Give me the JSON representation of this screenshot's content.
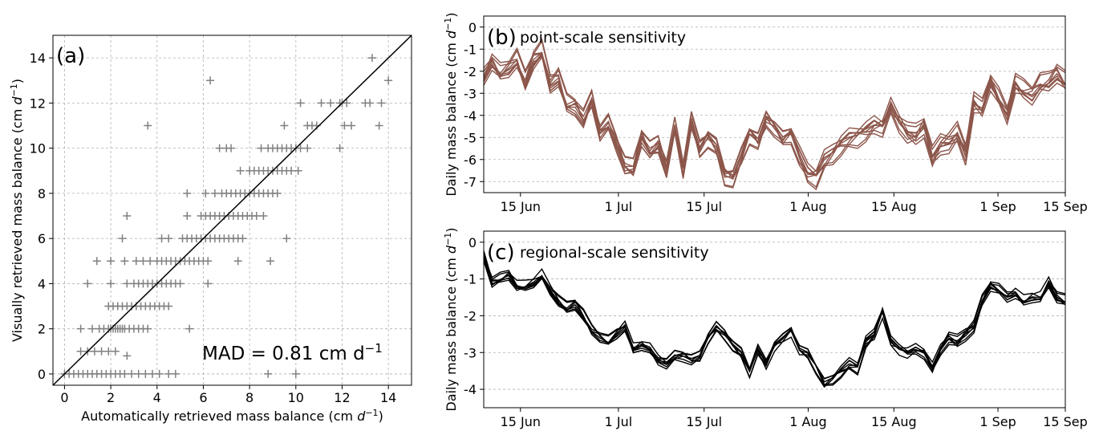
{
  "chart_data": [
    {
      "id": "a",
      "type": "scatter",
      "panel_letter": "(a)",
      "xlabel_main": "Automatically retrieved mass balance (cm ",
      "ylabel_main": "Visually retrieved mass balance (cm ",
      "unit_var": "d",
      "unit_exp": "−1",
      "close_paren": ")",
      "xlim": [
        -0.5,
        15
      ],
      "ylim": [
        -0.5,
        15
      ],
      "xticks": [
        0,
        2,
        4,
        6,
        8,
        10,
        12,
        14
      ],
      "yticks": [
        0,
        2,
        4,
        6,
        8,
        10,
        12,
        14
      ],
      "marker_color": "#808080",
      "annotation_main": "MAD = 0.81 cm d",
      "annotation_exp": "−1",
      "one_to_one_line": true,
      "points": [
        [
          0,
          0
        ],
        [
          0.2,
          0
        ],
        [
          0.4,
          0
        ],
        [
          0.6,
          0
        ],
        [
          0.8,
          0
        ],
        [
          1.0,
          0
        ],
        [
          1.2,
          0
        ],
        [
          1.4,
          0
        ],
        [
          1.6,
          0
        ],
        [
          1.8,
          0
        ],
        [
          2.0,
          0
        ],
        [
          2.2,
          0
        ],
        [
          2.4,
          0
        ],
        [
          2.6,
          0
        ],
        [
          2.9,
          0
        ],
        [
          3.2,
          0
        ],
        [
          3.5,
          0
        ],
        [
          3.8,
          0
        ],
        [
          4.1,
          0
        ],
        [
          4.5,
          0
        ],
        [
          4.8,
          0
        ],
        [
          8.8,
          0
        ],
        [
          10.0,
          0
        ],
        [
          0.7,
          1
        ],
        [
          1.0,
          1
        ],
        [
          1.3,
          1
        ],
        [
          1.6,
          1
        ],
        [
          1.9,
          1
        ],
        [
          2.2,
          1
        ],
        [
          2.7,
          0.8
        ],
        [
          0.7,
          2
        ],
        [
          1.2,
          2
        ],
        [
          1.5,
          2
        ],
        [
          1.7,
          2
        ],
        [
          1.9,
          2
        ],
        [
          2.0,
          2
        ],
        [
          2.1,
          2
        ],
        [
          2.2,
          2
        ],
        [
          2.3,
          2
        ],
        [
          2.4,
          2
        ],
        [
          2.5,
          2
        ],
        [
          2.6,
          2
        ],
        [
          2.8,
          2
        ],
        [
          3.0,
          2
        ],
        [
          3.2,
          2
        ],
        [
          3.4,
          2
        ],
        [
          3.6,
          2
        ],
        [
          5.4,
          2
        ],
        [
          1.9,
          3
        ],
        [
          2.1,
          3
        ],
        [
          2.3,
          3
        ],
        [
          2.5,
          3
        ],
        [
          2.7,
          3
        ],
        [
          2.9,
          3
        ],
        [
          3.1,
          3
        ],
        [
          3.3,
          3
        ],
        [
          3.5,
          3
        ],
        [
          3.7,
          3
        ],
        [
          3.9,
          3
        ],
        [
          4.1,
          3
        ],
        [
          4.3,
          3
        ],
        [
          4.5,
          3
        ],
        [
          1.0,
          4
        ],
        [
          2.0,
          4
        ],
        [
          2.7,
          4
        ],
        [
          3.0,
          4
        ],
        [
          3.2,
          4
        ],
        [
          3.4,
          4
        ],
        [
          3.6,
          4
        ],
        [
          3.8,
          4
        ],
        [
          4.0,
          4
        ],
        [
          4.2,
          4
        ],
        [
          4.4,
          4
        ],
        [
          4.6,
          4
        ],
        [
          4.8,
          4
        ],
        [
          5.0,
          4
        ],
        [
          6.2,
          4
        ],
        [
          1.4,
          5
        ],
        [
          2.0,
          5
        ],
        [
          2.6,
          5
        ],
        [
          3.1,
          5
        ],
        [
          3.4,
          5
        ],
        [
          3.7,
          5
        ],
        [
          4.0,
          5
        ],
        [
          4.2,
          5
        ],
        [
          4.4,
          5
        ],
        [
          4.6,
          5
        ],
        [
          4.8,
          5
        ],
        [
          5.0,
          5
        ],
        [
          5.2,
          5
        ],
        [
          5.4,
          5
        ],
        [
          5.6,
          5
        ],
        [
          5.8,
          5
        ],
        [
          6.0,
          5
        ],
        [
          6.2,
          5
        ],
        [
          7.5,
          5
        ],
        [
          8.9,
          5
        ],
        [
          2.5,
          6
        ],
        [
          4.2,
          6
        ],
        [
          4.5,
          6
        ],
        [
          5.1,
          6
        ],
        [
          5.3,
          6
        ],
        [
          5.5,
          6
        ],
        [
          5.7,
          6
        ],
        [
          5.9,
          6
        ],
        [
          6.1,
          6
        ],
        [
          6.3,
          6
        ],
        [
          6.5,
          6
        ],
        [
          6.7,
          6
        ],
        [
          6.9,
          6
        ],
        [
          7.1,
          6
        ],
        [
          7.3,
          6
        ],
        [
          7.5,
          6
        ],
        [
          7.7,
          6
        ],
        [
          9.6,
          6
        ],
        [
          2.7,
          7
        ],
        [
          5.3,
          7
        ],
        [
          5.9,
          7
        ],
        [
          6.1,
          7
        ],
        [
          6.3,
          7
        ],
        [
          6.5,
          7
        ],
        [
          6.7,
          7
        ],
        [
          6.9,
          7
        ],
        [
          7.1,
          7
        ],
        [
          7.3,
          7
        ],
        [
          7.5,
          7
        ],
        [
          7.7,
          7
        ],
        [
          7.9,
          7
        ],
        [
          8.1,
          7
        ],
        [
          8.3,
          7
        ],
        [
          8.6,
          7
        ],
        [
          5.3,
          8
        ],
        [
          6.1,
          8
        ],
        [
          6.5,
          8
        ],
        [
          6.8,
          8
        ],
        [
          7.0,
          8
        ],
        [
          7.2,
          8
        ],
        [
          7.4,
          8
        ],
        [
          7.6,
          8
        ],
        [
          7.8,
          8
        ],
        [
          8.0,
          8
        ],
        [
          8.2,
          8
        ],
        [
          8.4,
          8
        ],
        [
          8.6,
          8
        ],
        [
          8.8,
          8
        ],
        [
          9.0,
          8
        ],
        [
          9.2,
          8
        ],
        [
          7.6,
          9
        ],
        [
          8.0,
          9
        ],
        [
          8.2,
          9
        ],
        [
          8.4,
          9
        ],
        [
          8.6,
          9
        ],
        [
          8.8,
          9
        ],
        [
          9.0,
          9
        ],
        [
          9.2,
          9
        ],
        [
          9.4,
          9
        ],
        [
          9.6,
          9
        ],
        [
          9.8,
          9
        ],
        [
          10.1,
          9
        ],
        [
          6.7,
          10
        ],
        [
          7.0,
          10
        ],
        [
          7.2,
          10
        ],
        [
          8.5,
          10
        ],
        [
          8.8,
          10
        ],
        [
          9.0,
          10
        ],
        [
          9.2,
          10
        ],
        [
          9.4,
          10
        ],
        [
          9.6,
          10
        ],
        [
          9.8,
          10
        ],
        [
          10.0,
          10
        ],
        [
          10.2,
          10
        ],
        [
          10.5,
          10
        ],
        [
          11.9,
          10
        ],
        [
          9.5,
          11
        ],
        [
          10.5,
          11
        ],
        [
          10.7,
          11
        ],
        [
          10.9,
          11
        ],
        [
          12.1,
          11
        ],
        [
          12.4,
          11
        ],
        [
          13.6,
          11
        ],
        [
          3.6,
          11
        ],
        [
          10.2,
          12
        ],
        [
          11.1,
          12
        ],
        [
          11.5,
          12
        ],
        [
          11.9,
          12
        ],
        [
          12.0,
          12
        ],
        [
          12.2,
          12
        ],
        [
          13.0,
          12
        ],
        [
          13.2,
          12
        ],
        [
          13.7,
          12
        ],
        [
          6.3,
          13
        ],
        [
          14.0,
          13
        ],
        [
          13.3,
          14
        ]
      ]
    },
    {
      "id": "b",
      "type": "line",
      "panel_letter": "(b)",
      "title": "point-scale sensitivity",
      "ylabel_main": "Daily mass balance (cm ",
      "unit_var": "d",
      "unit_exp": "−1",
      "close_paren": ")",
      "ylim": [
        -7.5,
        0.5
      ],
      "yticks": [
        0,
        -1,
        -2,
        -3,
        -4,
        -5,
        -6,
        -7
      ],
      "x_range_days": [
        -3,
        92
      ],
      "xticks": [
        {
          "day": 3,
          "label": "15 Jun"
        },
        {
          "day": 19,
          "label": "1 Jul"
        },
        {
          "day": 33,
          "label": "15 Jul"
        },
        {
          "day": 50,
          "label": "1 Aug"
        },
        {
          "day": 64,
          "label": "15 Aug"
        },
        {
          "day": 81,
          "label": "1 Sep"
        },
        {
          "day": 95,
          "label": "15 Sep"
        }
      ],
      "line_color": "#8c564b",
      "n_series": 10,
      "spread": 0.5,
      "base": [
        -2.3,
        -1.6,
        -2.1,
        -1.9,
        -1.5,
        -2.5,
        -1.5,
        -1.1,
        -2.6,
        -2.3,
        -3.5,
        -3.6,
        -4.2,
        -3.3,
        -4.8,
        -4.4,
        -5.3,
        -6.3,
        -6.4,
        -5.0,
        -5.6,
        -5.3,
        -6.4,
        -4.5,
        -6.4,
        -4.2,
        -5.5,
        -5.0,
        -5.4,
        -6.7,
        -6.8,
        -5.8,
        -4.8,
        -5.1,
        -4.1,
        -4.5,
        -5.0,
        -4.8,
        -5.8,
        -6.6,
        -6.8,
        -6.0,
        -5.7,
        -5.3,
        -5.0,
        -4.9,
        -4.7,
        -4.4,
        -4.5,
        -3.6,
        -4.3,
        -4.8,
        -4.9,
        -4.5,
        -5.9,
        -5.3,
        -5.2,
        -4.8,
        -5.7,
        -3.4,
        -3.7,
        -2.5,
        -3.2,
        -4.0,
        -2.6,
        -2.9,
        -3.1,
        -2.6,
        -2.5,
        -2.1,
        -2.5
      ]
    },
    {
      "id": "c",
      "type": "line",
      "panel_letter": "(c)",
      "title": "regional-scale sensitivity",
      "ylabel_main": "Daily mass balance (cm ",
      "unit_var": "d",
      "unit_exp": "−1",
      "close_paren": ")",
      "ylim": [
        -4.5,
        0.3
      ],
      "yticks": [
        0,
        -1,
        -2,
        -3,
        -4
      ],
      "x_range_days": [
        -3,
        92
      ],
      "xticks": [
        {
          "day": 3,
          "label": "15 Jun"
        },
        {
          "day": 19,
          "label": "1 Jul"
        },
        {
          "day": 33,
          "label": "15 Jul"
        },
        {
          "day": 50,
          "label": "1 Aug"
        },
        {
          "day": 64,
          "label": "15 Aug"
        },
        {
          "day": 81,
          "label": "1 Sep"
        },
        {
          "day": 95,
          "label": "15 Sep"
        }
      ],
      "line_color": "#000000",
      "n_series": 8,
      "spread": 0.18,
      "base": [
        -0.4,
        -1.1,
        -1.0,
        -0.9,
        -1.2,
        -1.2,
        -1.1,
        -0.9,
        -1.3,
        -1.6,
        -1.8,
        -1.7,
        -2.0,
        -2.4,
        -2.6,
        -2.7,
        -2.5,
        -2.3,
        -2.9,
        -2.8,
        -2.9,
        -3.2,
        -3.3,
        -3.1,
        -3.1,
        -3.2,
        -3.1,
        -2.6,
        -2.3,
        -2.5,
        -2.8,
        -3.0,
        -3.5,
        -2.9,
        -3.3,
        -2.8,
        -2.6,
        -2.4,
        -2.9,
        -3.0,
        -3.4,
        -3.8,
        -3.7,
        -3.5,
        -3.3,
        -3.4,
        -2.7,
        -2.5,
        -1.9,
        -2.7,
        -2.9,
        -3.0,
        -2.9,
        -3.0,
        -3.4,
        -2.9,
        -2.6,
        -2.7,
        -2.5,
        -2.3,
        -1.6,
        -1.2,
        -1.3,
        -1.5,
        -1.4,
        -1.6,
        -1.5,
        -1.5,
        -1.1,
        -1.5,
        -1.6
      ]
    }
  ]
}
